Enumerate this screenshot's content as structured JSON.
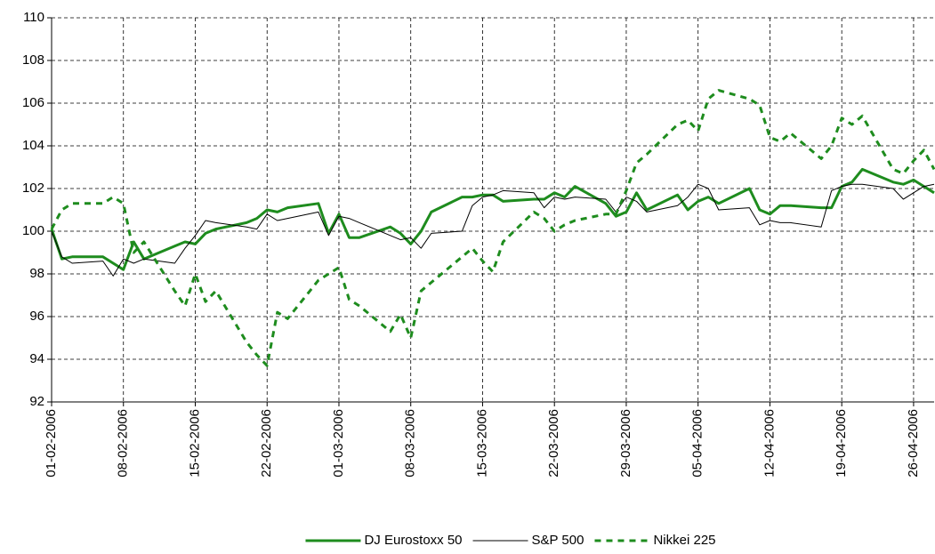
{
  "chart_data": {
    "type": "line",
    "x": [
      "01-02-2006",
      "02-02-2006",
      "03-02-2006",
      "06-02-2006",
      "07-02-2006",
      "08-02-2006",
      "09-02-2006",
      "10-02-2006",
      "13-02-2006",
      "14-02-2006",
      "15-02-2006",
      "16-02-2006",
      "17-02-2006",
      "20-02-2006",
      "21-02-2006",
      "22-02-2006",
      "23-02-2006",
      "24-02-2006",
      "27-02-2006",
      "28-02-2006",
      "01-03-2006",
      "02-03-2006",
      "03-03-2006",
      "06-03-2006",
      "07-03-2006",
      "08-03-2006",
      "09-03-2006",
      "10-03-2006",
      "13-03-2006",
      "14-03-2006",
      "15-03-2006",
      "16-03-2006",
      "17-03-2006",
      "20-03-2006",
      "21-03-2006",
      "22-03-2006",
      "23-03-2006",
      "24-03-2006",
      "27-03-2006",
      "28-03-2006",
      "29-03-2006",
      "30-03-2006",
      "31-03-2006",
      "03-04-2006",
      "04-04-2006",
      "05-04-2006",
      "06-04-2006",
      "07-04-2006",
      "10-04-2006",
      "11-04-2006",
      "12-04-2006",
      "13-04-2006",
      "14-04-2006",
      "17-04-2006",
      "18-04-2006",
      "19-04-2006",
      "20-04-2006",
      "21-04-2006",
      "24-04-2006",
      "25-04-2006",
      "26-04-2006",
      "27-04-2006",
      "28-04-2006"
    ],
    "series": [
      {
        "name": "DJ Eurostoxx 50",
        "color": "#1e8c1e",
        "dash": "solid",
        "values": [
          100.1,
          98.7,
          98.8,
          98.8,
          98.5,
          98.2,
          99.5,
          98.7,
          99.3,
          99.5,
          99.4,
          99.9,
          100.1,
          100.4,
          100.6,
          101.0,
          100.9,
          101.1,
          101.3,
          99.9,
          100.8,
          99.7,
          99.7,
          100.2,
          99.9,
          99.4,
          100.0,
          100.9,
          101.6,
          101.6,
          101.7,
          101.7,
          101.4,
          101.5,
          101.5,
          101.8,
          101.6,
          102.1,
          101.3,
          100.7,
          100.9,
          101.8,
          101.0,
          101.7,
          101.0,
          101.4,
          101.6,
          101.3,
          102.0,
          101.0,
          100.8,
          101.2,
          101.2,
          101.1,
          101.1,
          102.1,
          102.3,
          102.9,
          102.3,
          102.2,
          102.4,
          102.1,
          101.8
        ]
      },
      {
        "name": "S&P 500",
        "color": "#000000",
        "dash": "solid",
        "values": [
          100.0,
          98.8,
          98.5,
          98.6,
          97.9,
          98.7,
          98.5,
          98.7,
          98.5,
          99.2,
          99.8,
          100.5,
          100.4,
          100.2,
          100.1,
          100.8,
          100.5,
          100.6,
          100.9,
          99.8,
          100.7,
          100.6,
          100.4,
          99.8,
          99.6,
          99.7,
          99.2,
          99.9,
          100.0,
          101.2,
          101.6,
          101.7,
          101.9,
          101.8,
          101.1,
          101.6,
          101.5,
          101.6,
          101.5,
          100.9,
          101.6,
          101.4,
          100.9,
          101.2,
          101.6,
          102.2,
          102.0,
          101.0,
          101.1,
          100.3,
          100.5,
          100.4,
          100.4,
          100.2,
          101.9,
          102.1,
          102.2,
          102.2,
          102.0,
          101.5,
          101.8,
          102.1,
          102.2
        ]
      },
      {
        "name": "Nikkei 225",
        "color": "#1e8c1e",
        "dash": "dashed",
        "values": [
          100.1,
          101.0,
          101.3,
          101.3,
          101.6,
          101.3,
          99.0,
          99.5,
          97.2,
          96.5,
          98.0,
          96.7,
          97.2,
          94.8,
          94.2,
          93.7,
          96.2,
          95.9,
          97.7,
          98.0,
          98.3,
          96.8,
          96.5,
          95.3,
          96.1,
          95.0,
          97.2,
          97.6,
          98.8,
          99.2,
          98.6,
          98.1,
          99.5,
          100.9,
          100.6,
          100.0,
          100.3,
          100.5,
          100.8,
          100.8,
          101.9,
          103.2,
          103.6,
          105.0,
          105.2,
          104.7,
          106.2,
          106.6,
          106.2,
          105.9,
          104.4,
          104.2,
          104.6,
          103.4,
          104.0,
          105.3,
          105.0,
          105.4,
          102.9,
          102.7,
          103.3,
          103.8,
          102.9
        ]
      }
    ],
    "xlim": [
      "01-02-2006",
      "28-04-2006"
    ],
    "xticks": [
      "01-02-2006",
      "08-02-2006",
      "15-02-2006",
      "22-02-2006",
      "01-03-2006",
      "08-03-2006",
      "15-03-2006",
      "22-03-2006",
      "29-03-2006",
      "05-04-2006",
      "12-04-2006",
      "19-04-2006",
      "26-04-2006"
    ],
    "ylim": [
      92,
      110
    ],
    "yticks": [
      92,
      94,
      96,
      98,
      100,
      102,
      104,
      106,
      108,
      110
    ],
    "grid": true,
    "legend": "bottom"
  }
}
